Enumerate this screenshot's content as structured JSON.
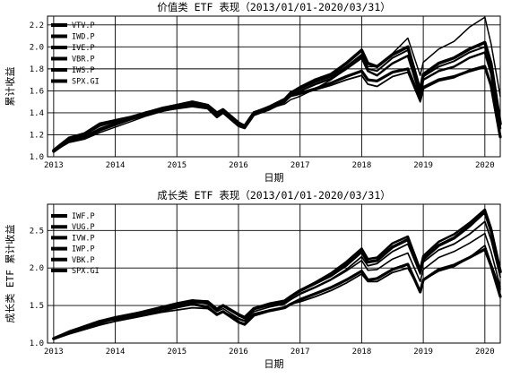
{
  "chart_data": [
    {
      "type": "line",
      "title": "价值类 ETF 表现（2013/01/01-2020/03/31）",
      "xlabel": "日期",
      "ylabel": "累计收益",
      "x_ticks": [
        "2013",
        "2014",
        "2015",
        "2016",
        "2017",
        "2018",
        "2019",
        "2020"
      ],
      "x_tick_values": [
        2013,
        2014,
        2015,
        2016,
        2017,
        2018,
        2019,
        2020
      ],
      "xlim": [
        2012.9,
        2020.25
      ],
      "y_ticks": [
        "1.0",
        "1.2",
        "1.4",
        "1.6",
        "1.8",
        "2.0",
        "2.2"
      ],
      "y_tick_values": [
        1.0,
        1.2,
        1.4,
        1.6,
        1.8,
        2.0,
        2.2
      ],
      "ylim": [
        1.0,
        2.28
      ],
      "grid": true,
      "legend_position": "top-left",
      "x": [
        2013.0,
        2013.25,
        2013.5,
        2013.75,
        2014.0,
        2014.25,
        2014.5,
        2014.75,
        2015.0,
        2015.25,
        2015.5,
        2015.65,
        2015.75,
        2016.0,
        2016.1,
        2016.25,
        2016.5,
        2016.75,
        2016.85,
        2017.0,
        2017.25,
        2017.5,
        2017.75,
        2018.0,
        2018.1,
        2018.25,
        2018.5,
        2018.75,
        2018.95,
        2019.0,
        2019.25,
        2019.5,
        2019.75,
        2020.0,
        2020.1,
        2020.25
      ],
      "series": [
        {
          "name": "VTV.P",
          "values": [
            1.05,
            1.15,
            1.18,
            1.25,
            1.3,
            1.35,
            1.4,
            1.43,
            1.45,
            1.48,
            1.46,
            1.38,
            1.42,
            1.3,
            1.28,
            1.4,
            1.45,
            1.52,
            1.58,
            1.63,
            1.7,
            1.75,
            1.85,
            1.97,
            1.85,
            1.82,
            1.93,
            2.0,
            1.6,
            1.75,
            1.85,
            1.9,
            1.98,
            2.04,
            1.85,
            1.3
          ]
        },
        {
          "name": "IWD.P",
          "values": [
            1.05,
            1.14,
            1.17,
            1.24,
            1.29,
            1.34,
            1.38,
            1.42,
            1.44,
            1.46,
            1.44,
            1.36,
            1.4,
            1.28,
            1.26,
            1.38,
            1.43,
            1.5,
            1.56,
            1.6,
            1.66,
            1.71,
            1.8,
            1.9,
            1.78,
            1.74,
            1.85,
            1.92,
            1.56,
            1.7,
            1.78,
            1.82,
            1.9,
            1.95,
            1.76,
            1.26
          ]
        },
        {
          "name": "IVE.P",
          "values": [
            1.05,
            1.15,
            1.18,
            1.25,
            1.3,
            1.35,
            1.4,
            1.43,
            1.45,
            1.48,
            1.46,
            1.38,
            1.42,
            1.3,
            1.28,
            1.4,
            1.46,
            1.53,
            1.59,
            1.62,
            1.68,
            1.73,
            1.82,
            1.93,
            1.8,
            1.78,
            1.9,
            1.97,
            1.59,
            1.73,
            1.82,
            1.87,
            1.95,
            2.0,
            1.82,
            1.28
          ]
        },
        {
          "name": "VBR.P",
          "values": [
            1.06,
            1.17,
            1.21,
            1.3,
            1.33,
            1.36,
            1.4,
            1.44,
            1.47,
            1.5,
            1.47,
            1.4,
            1.43,
            1.31,
            1.28,
            1.4,
            1.45,
            1.51,
            1.56,
            1.58,
            1.62,
            1.67,
            1.73,
            1.78,
            1.7,
            1.69,
            1.77,
            1.8,
            1.52,
            1.63,
            1.7,
            1.73,
            1.78,
            1.82,
            1.65,
            1.18
          ]
        },
        {
          "name": "IWS.P",
          "values": [
            1.06,
            1.16,
            1.2,
            1.28,
            1.32,
            1.36,
            1.4,
            1.43,
            1.45,
            1.48,
            1.45,
            1.37,
            1.4,
            1.29,
            1.27,
            1.39,
            1.44,
            1.5,
            1.55,
            1.57,
            1.61,
            1.65,
            1.7,
            1.74,
            1.66,
            1.64,
            1.73,
            1.77,
            1.5,
            1.62,
            1.69,
            1.72,
            1.79,
            1.83,
            1.64,
            1.18
          ]
        },
        {
          "name": "SPX.GI",
          "values": [
            1.05,
            1.13,
            1.16,
            1.22,
            1.27,
            1.32,
            1.37,
            1.41,
            1.44,
            1.46,
            1.45,
            1.37,
            1.41,
            1.3,
            1.28,
            1.39,
            1.44,
            1.48,
            1.52,
            1.55,
            1.62,
            1.7,
            1.8,
            1.92,
            1.82,
            1.82,
            1.94,
            2.08,
            1.74,
            1.86,
            1.98,
            2.05,
            2.18,
            2.27,
            2.03,
            1.55
          ]
        }
      ]
    },
    {
      "type": "line",
      "title": "成长类 ETF 表现（2013/01/01-2020/03/31）",
      "xlabel": "日期",
      "ylabel": "成长类 ETF 累计收益",
      "x_ticks": [
        "2013",
        "2014",
        "2015",
        "2016",
        "2017",
        "2018",
        "2019",
        "2020"
      ],
      "x_tick_values": [
        2013,
        2014,
        2015,
        2016,
        2017,
        2018,
        2019,
        2020
      ],
      "xlim": [
        2012.9,
        2020.25
      ],
      "y_ticks": [
        "1.0",
        "1.5",
        "2.0",
        "2.5"
      ],
      "y_tick_values": [
        1.0,
        1.5,
        2.0,
        2.5
      ],
      "ylim": [
        1.0,
        2.85
      ],
      "grid": true,
      "legend_position": "top-left",
      "x": [
        2013.0,
        2013.25,
        2013.5,
        2013.75,
        2014.0,
        2014.25,
        2014.5,
        2014.75,
        2015.0,
        2015.25,
        2015.5,
        2015.65,
        2015.75,
        2016.0,
        2016.1,
        2016.25,
        2016.5,
        2016.75,
        2016.85,
        2017.0,
        2017.25,
        2017.5,
        2017.75,
        2018.0,
        2018.1,
        2018.25,
        2018.5,
        2018.75,
        2018.95,
        2019.0,
        2019.25,
        2019.5,
        2019.75,
        2020.0,
        2020.1,
        2020.25
      ],
      "series": [
        {
          "name": "IWF.P",
          "values": [
            1.06,
            1.14,
            1.21,
            1.28,
            1.33,
            1.37,
            1.42,
            1.47,
            1.52,
            1.56,
            1.55,
            1.45,
            1.5,
            1.38,
            1.34,
            1.46,
            1.52,
            1.56,
            1.62,
            1.7,
            1.8,
            1.9,
            2.04,
            2.22,
            2.08,
            2.1,
            2.28,
            2.38,
            1.95,
            2.12,
            2.3,
            2.4,
            2.56,
            2.75,
            2.5,
            1.95
          ]
        },
        {
          "name": "VUG.P",
          "values": [
            1.06,
            1.14,
            1.22,
            1.29,
            1.34,
            1.38,
            1.43,
            1.48,
            1.53,
            1.57,
            1.55,
            1.45,
            1.5,
            1.37,
            1.33,
            1.45,
            1.51,
            1.55,
            1.61,
            1.7,
            1.81,
            1.93,
            2.08,
            2.26,
            2.12,
            2.14,
            2.33,
            2.42,
            1.98,
            2.16,
            2.35,
            2.45,
            2.6,
            2.78,
            2.53,
            1.97
          ]
        },
        {
          "name": "IVW.P",
          "values": [
            1.06,
            1.13,
            1.2,
            1.26,
            1.32,
            1.36,
            1.41,
            1.46,
            1.5,
            1.54,
            1.54,
            1.45,
            1.49,
            1.37,
            1.33,
            1.45,
            1.5,
            1.53,
            1.58,
            1.66,
            1.75,
            1.85,
            1.98,
            2.15,
            2.03,
            2.06,
            2.22,
            2.32,
            1.92,
            2.08,
            2.24,
            2.32,
            2.45,
            2.62,
            2.38,
            1.88
          ]
        },
        {
          "name": "IWP.P",
          "values": [
            1.06,
            1.15,
            1.23,
            1.3,
            1.35,
            1.39,
            1.43,
            1.47,
            1.51,
            1.55,
            1.52,
            1.42,
            1.46,
            1.33,
            1.3,
            1.42,
            1.48,
            1.52,
            1.58,
            1.65,
            1.74,
            1.84,
            1.96,
            2.1,
            1.97,
            1.98,
            2.12,
            2.2,
            1.82,
            1.98,
            2.14,
            2.22,
            2.33,
            2.46,
            2.22,
            1.75
          ]
        },
        {
          "name": "VBK.P",
          "values": [
            1.06,
            1.15,
            1.22,
            1.29,
            1.32,
            1.34,
            1.38,
            1.43,
            1.48,
            1.52,
            1.48,
            1.38,
            1.42,
            1.28,
            1.25,
            1.37,
            1.43,
            1.47,
            1.52,
            1.58,
            1.66,
            1.74,
            1.84,
            1.96,
            1.84,
            1.86,
            1.98,
            2.05,
            1.68,
            1.84,
            1.98,
            2.04,
            2.14,
            2.25,
            2.03,
            1.62
          ]
        },
        {
          "name": "SPX.GI",
          "values": [
            1.05,
            1.12,
            1.18,
            1.24,
            1.29,
            1.33,
            1.37,
            1.41,
            1.44,
            1.47,
            1.46,
            1.38,
            1.42,
            1.32,
            1.29,
            1.39,
            1.44,
            1.48,
            1.52,
            1.55,
            1.62,
            1.7,
            1.8,
            1.92,
            1.82,
            1.82,
            1.94,
            2.0,
            1.7,
            1.84,
            1.96,
            2.02,
            2.14,
            2.3,
            2.06,
            1.72
          ]
        }
      ]
    }
  ]
}
